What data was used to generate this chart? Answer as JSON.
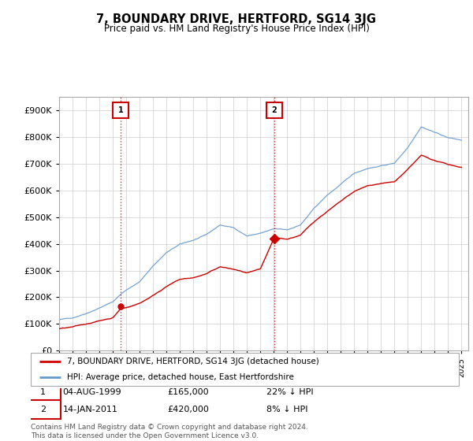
{
  "title": "7, BOUNDARY DRIVE, HERTFORD, SG14 3JG",
  "subtitle": "Price paid vs. HM Land Registry's House Price Index (HPI)",
  "hpi_color": "#6699cc",
  "price_color": "#cc0000",
  "background_color": "#ffffff",
  "grid_color": "#cccccc",
  "ylim": [
    0,
    950000
  ],
  "yticks": [
    0,
    100000,
    200000,
    300000,
    400000,
    500000,
    600000,
    700000,
    800000,
    900000
  ],
  "ytick_labels": [
    "£0",
    "£100K",
    "£200K",
    "£300K",
    "£400K",
    "£500K",
    "£600K",
    "£700K",
    "£800K",
    "£900K"
  ],
  "sale1_year": 1999.59,
  "sale1_price": 165000,
  "sale2_year": 2011.04,
  "sale2_price": 420000,
  "sale1_date": "04-AUG-1999",
  "sale1_hpi_pct": "22% ↓ HPI",
  "sale2_date": "14-JAN-2011",
  "sale2_hpi_pct": "8% ↓ HPI",
  "legend_label1": "7, BOUNDARY DRIVE, HERTFORD, SG14 3JG (detached house)",
  "legend_label2": "HPI: Average price, detached house, East Hertfordshire",
  "footer": "Contains HM Land Registry data © Crown copyright and database right 2024.\nThis data is licensed under the Open Government Licence v3.0.",
  "hpi_curve": [
    [
      1995.0,
      115000
    ],
    [
      1996.0,
      122000
    ],
    [
      1997.0,
      140000
    ],
    [
      1998.0,
      162000
    ],
    [
      1999.0,
      185000
    ],
    [
      1999.59,
      213000
    ],
    [
      2000.0,
      230000
    ],
    [
      2001.0,
      260000
    ],
    [
      2002.0,
      320000
    ],
    [
      2003.0,
      370000
    ],
    [
      2004.0,
      400000
    ],
    [
      2005.0,
      415000
    ],
    [
      2006.0,
      435000
    ],
    [
      2007.0,
      470000
    ],
    [
      2008.0,
      460000
    ],
    [
      2009.0,
      430000
    ],
    [
      2010.0,
      440000
    ],
    [
      2011.04,
      455000
    ],
    [
      2012.0,
      450000
    ],
    [
      2013.0,
      470000
    ],
    [
      2014.0,
      530000
    ],
    [
      2015.0,
      580000
    ],
    [
      2016.0,
      620000
    ],
    [
      2017.0,
      660000
    ],
    [
      2018.0,
      680000
    ],
    [
      2019.0,
      690000
    ],
    [
      2020.0,
      700000
    ],
    [
      2021.0,
      760000
    ],
    [
      2022.0,
      840000
    ],
    [
      2023.0,
      820000
    ],
    [
      2024.0,
      800000
    ],
    [
      2025.0,
      790000
    ]
  ],
  "price_curve": [
    [
      1995.0,
      90000
    ],
    [
      1996.0,
      95000
    ],
    [
      1997.0,
      105000
    ],
    [
      1998.0,
      118000
    ],
    [
      1999.0,
      130000
    ],
    [
      1999.59,
      165000
    ],
    [
      2000.0,
      168000
    ],
    [
      2001.0,
      185000
    ],
    [
      2002.0,
      215000
    ],
    [
      2003.0,
      250000
    ],
    [
      2004.0,
      275000
    ],
    [
      2005.0,
      280000
    ],
    [
      2006.0,
      295000
    ],
    [
      2007.0,
      320000
    ],
    [
      2008.0,
      310000
    ],
    [
      2009.0,
      295000
    ],
    [
      2010.0,
      305000
    ],
    [
      2011.04,
      420000
    ],
    [
      2012.0,
      415000
    ],
    [
      2013.0,
      430000
    ],
    [
      2014.0,
      480000
    ],
    [
      2015.0,
      520000
    ],
    [
      2016.0,
      555000
    ],
    [
      2017.0,
      590000
    ],
    [
      2018.0,
      610000
    ],
    [
      2019.0,
      620000
    ],
    [
      2020.0,
      625000
    ],
    [
      2021.0,
      670000
    ],
    [
      2022.0,
      720000
    ],
    [
      2023.0,
      700000
    ],
    [
      2024.0,
      685000
    ],
    [
      2025.0,
      675000
    ]
  ]
}
